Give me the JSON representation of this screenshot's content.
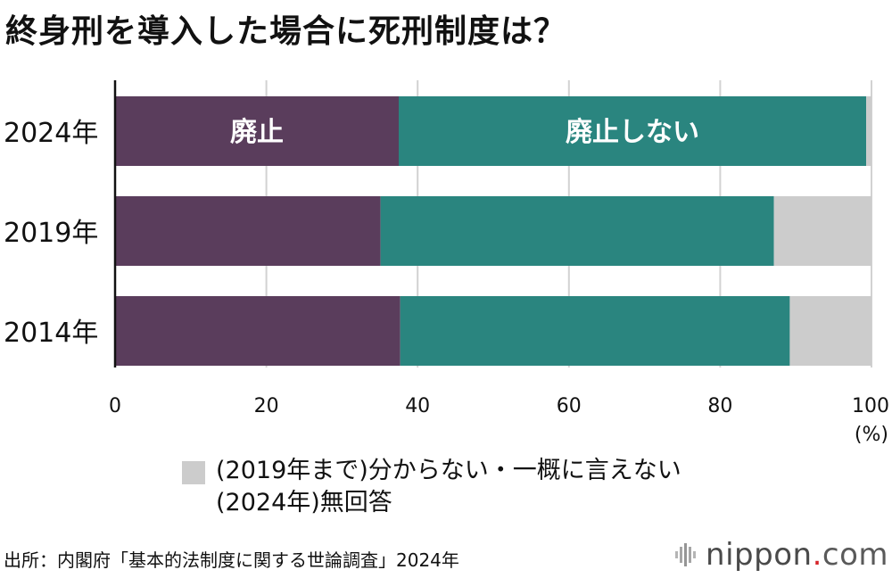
{
  "chart_data": {
    "type": "bar",
    "orientation": "horizontal",
    "stacked": true,
    "title": "終身刑を導入した場合に死刑制度は？",
    "categories": [
      "2024年",
      "2019年",
      "2014年"
    ],
    "series": [
      {
        "name": "廃止",
        "values": [
          37.5,
          35.1,
          37.7
        ],
        "color": "#5a3d5c"
      },
      {
        "name": "廃止しない",
        "values": [
          61.8,
          52.0,
          51.5
        ],
        "color": "#2a857f"
      },
      {
        "name": "(2019年まで)分からない・一概に言えない\n(2024年)無回答",
        "values": [
          0.7,
          12.9,
          10.8
        ],
        "color": "#cccccc"
      }
    ],
    "xlim": [
      0,
      100
    ],
    "xticks": [
      0,
      20,
      40,
      60,
      80,
      100
    ],
    "xunit": "(%)",
    "grid": true,
    "legend_placement": "bottom"
  },
  "legend": {
    "line1": "(2019年まで)分からない・一概に言えない",
    "line2": "(2024年)無回答",
    "color": "#cccccc"
  },
  "source": "出所：内閣府「基本的法制度に関する世論調査」2024年",
  "logo": {
    "name": "nippon",
    "dot": ".",
    "tld": "com",
    "dot_color": "#d6242a"
  }
}
